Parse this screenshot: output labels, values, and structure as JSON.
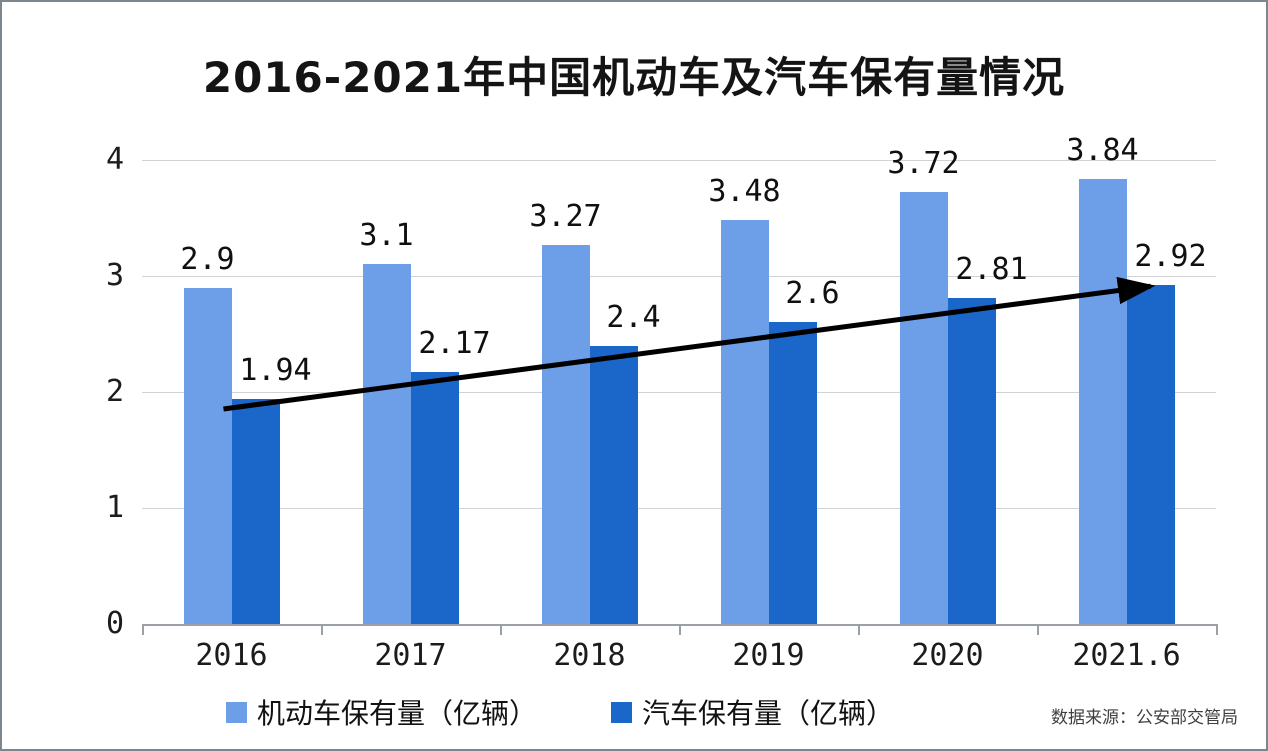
{
  "chart_data": {
    "type": "bar",
    "title": "2016-2021年中国机动车及汽车保有量情况",
    "categories": [
      "2016",
      "2017",
      "2018",
      "2019",
      "2020",
      "2021.6"
    ],
    "series": [
      {
        "name": "机动车保有量（亿辆）",
        "color": "#6d9ee8",
        "values": [
          2.9,
          3.1,
          3.27,
          3.48,
          3.72,
          3.84
        ]
      },
      {
        "name": "汽车保有量（亿辆）",
        "color": "#1b66c9",
        "values": [
          1.94,
          2.17,
          2.4,
          2.6,
          2.81,
          2.92
        ]
      }
    ],
    "ylim": [
      0,
      4
    ],
    "yticks": [
      0,
      1,
      2,
      3,
      4
    ],
    "grid": true,
    "value_labels": true,
    "legend_position": "bottom",
    "annotations": {
      "trend_arrow": {
        "description": "straight black arrow following the tops of the 汽车保有量 bars from 2016 to 2021.6",
        "color": "#000000"
      }
    }
  },
  "source": {
    "label": "数据来源：公安部交管局"
  }
}
